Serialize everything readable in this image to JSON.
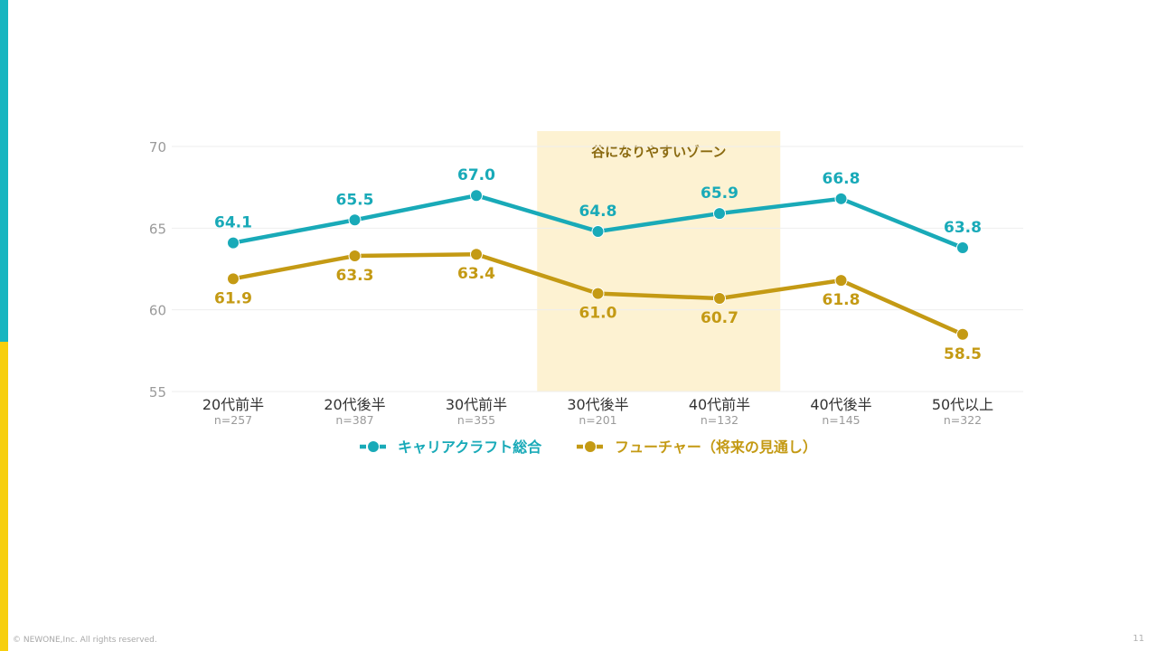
{
  "slide": {
    "copyright": "© NEWONE,Inc.  All rights reserved.",
    "page_number": "11"
  },
  "colors": {
    "career": "#19aab8",
    "future": "#c49a14",
    "zone": "#fdf2d2",
    "accent_left_top": "#16b5c0",
    "accent_left_bottom": "#f7cf0c"
  },
  "chart_data": {
    "type": "line",
    "categories": [
      "20代前半",
      "20代後半",
      "30代前半",
      "30代後半",
      "40代前半",
      "40代後半",
      "50代以上"
    ],
    "sample_sizes": [
      "n=257",
      "n=387",
      "n=355",
      "n=201",
      "n=132",
      "n=145",
      "n=322"
    ],
    "series": [
      {
        "name": "キャリアクラフト総合",
        "values": [
          64.1,
          65.5,
          67.0,
          64.8,
          65.9,
          66.8,
          63.8
        ]
      },
      {
        "name": "フューチャー（将来の見通し）",
        "values": [
          61.9,
          63.3,
          63.4,
          61.0,
          60.7,
          61.8,
          58.5
        ]
      }
    ],
    "ylim": [
      55,
      70
    ],
    "yticks": [
      55,
      60,
      65,
      70
    ],
    "grid": true,
    "legend_position": "bottom",
    "annotation": {
      "text": "谷になりやすいゾーン",
      "from_category": "30代後半",
      "to_category": "40代前半"
    }
  }
}
